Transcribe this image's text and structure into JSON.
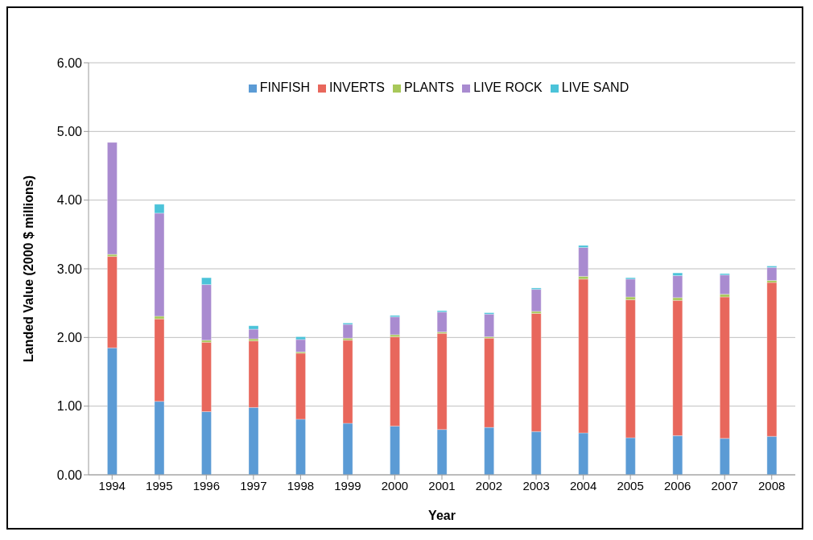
{
  "chart_data": {
    "type": "bar",
    "stacked": true,
    "xlabel": "Year",
    "ylabel": "Landed Value (2000 $ millions)",
    "categories": [
      "1994",
      "1995",
      "1996",
      "1997",
      "1998",
      "1999",
      "2000",
      "2001",
      "2002",
      "2003",
      "2004",
      "2005",
      "2006",
      "2007",
      "2008"
    ],
    "series": [
      {
        "name": "FINFISH",
        "color": "#5b9bd5",
        "values": [
          1.85,
          1.07,
          0.92,
          0.98,
          0.81,
          0.75,
          0.71,
          0.66,
          0.69,
          0.63,
          0.61,
          0.54,
          0.57,
          0.53,
          0.56
        ]
      },
      {
        "name": "INVERTS",
        "color": "#e8675c",
        "values": [
          1.33,
          1.2,
          1.01,
          0.97,
          0.96,
          1.21,
          1.3,
          1.4,
          1.3,
          1.72,
          2.24,
          2.01,
          1.97,
          2.06,
          2.24
        ]
      },
      {
        "name": "PLANTS",
        "color": "#a8c85a",
        "values": [
          0.03,
          0.04,
          0.03,
          0.03,
          0.02,
          0.03,
          0.03,
          0.02,
          0.02,
          0.03,
          0.04,
          0.04,
          0.04,
          0.04,
          0.03
        ]
      },
      {
        "name": "LIVE ROCK",
        "color": "#a98bd0",
        "values": [
          1.63,
          1.5,
          0.81,
          0.14,
          0.18,
          0.2,
          0.26,
          0.29,
          0.33,
          0.32,
          0.42,
          0.26,
          0.32,
          0.28,
          0.19
        ]
      },
      {
        "name": "LIVE SAND",
        "color": "#4bc3d9",
        "values": [
          0,
          0.13,
          0.1,
          0.05,
          0.04,
          0.02,
          0.02,
          0.02,
          0.02,
          0.02,
          0.03,
          0.02,
          0.04,
          0.02,
          0.02
        ]
      }
    ],
    "ylim": [
      0,
      6
    ],
    "yticks": [
      {
        "value": 0,
        "label": "0.00"
      },
      {
        "value": 1,
        "label": "1.00"
      },
      {
        "value": 2,
        "label": "2.00"
      },
      {
        "value": 3,
        "label": "3.00"
      },
      {
        "value": 4,
        "label": "4.00"
      },
      {
        "value": 5,
        "label": "5.00"
      },
      {
        "value": 6,
        "label": "6.00"
      }
    ],
    "grid": "y",
    "legend": "top"
  }
}
